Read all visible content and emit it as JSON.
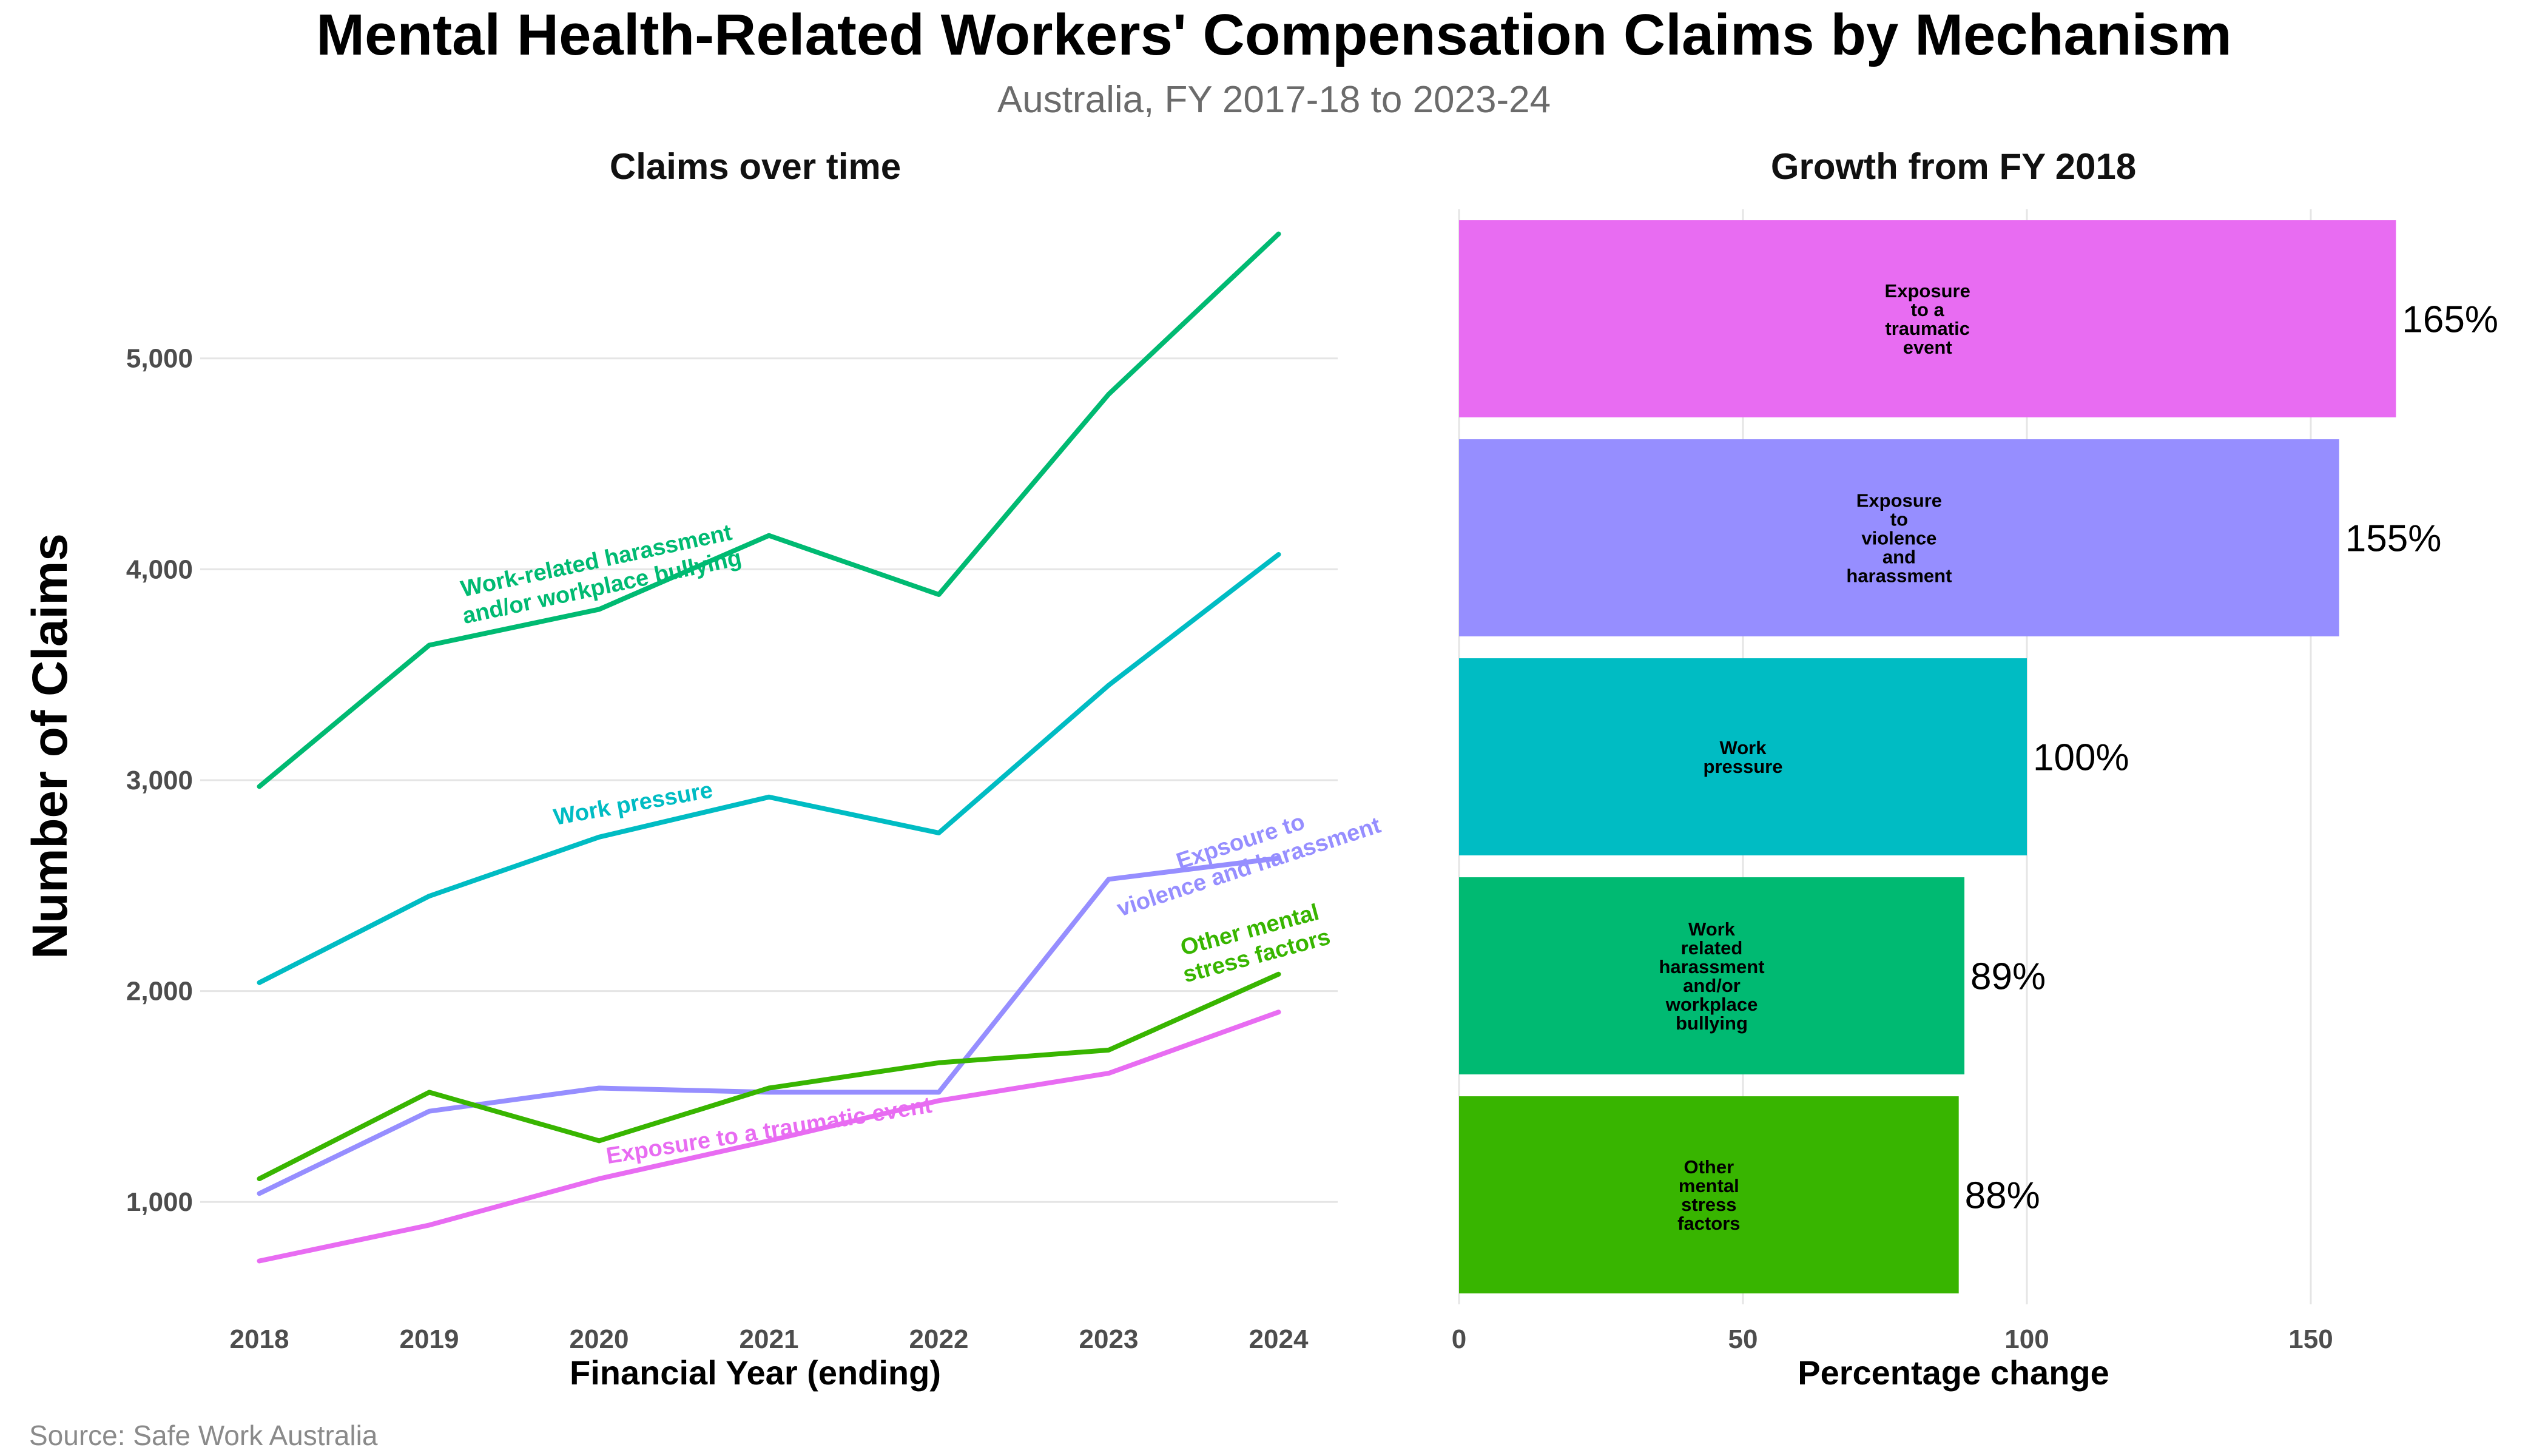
{
  "title": "Mental Health-Related Workers' Compensation Claims by Mechanism",
  "subtitle": "Australia, FY 2017-18 to 2023-24",
  "source": "Source: Safe Work Australia",
  "chart_data": [
    {
      "type": "line",
      "title": "Claims over time",
      "xlabel": "Financial Year (ending)",
      "ylabel": "Number of Claims",
      "x": [
        2018,
        2019,
        2020,
        2021,
        2022,
        2023,
        2024
      ],
      "x_tick_labels": [
        "2018",
        "2019",
        "2020",
        "2021",
        "2022",
        "2023",
        "2024"
      ],
      "ylim": [
        500,
        5750
      ],
      "y_ticks": [
        1000,
        2000,
        3000,
        4000,
        5000
      ],
      "y_tick_labels": [
        "1,000",
        "2,000",
        "3,000",
        "4,000",
        "5,000"
      ],
      "grid": true,
      "series": [
        {
          "name": "Work-related harassment and/or workplace bullying",
          "label_lines": [
            "Work-related harassment",
            "and/or workplace bullying"
          ],
          "color": "#00BA72",
          "values": [
            2970,
            3640,
            3810,
            4160,
            3880,
            4830,
            5590
          ]
        },
        {
          "name": "Work pressure",
          "label_lines": [
            "Work pressure"
          ],
          "color": "#00BCC3",
          "values": [
            2040,
            2450,
            2730,
            2920,
            2750,
            3450,
            4070
          ]
        },
        {
          "name": "Exposure to violence and harassment",
          "label_lines": [
            "Expsoure to",
            "violence and harassment"
          ],
          "color": "#968EFF",
          "values": [
            1040,
            1430,
            1540,
            1520,
            1520,
            2530,
            2630
          ]
        },
        {
          "name": "Other mental stress factors",
          "label_lines": [
            "Other mental",
            "stress factors"
          ],
          "color": "#38B500",
          "values": [
            1110,
            1520,
            1290,
            1540,
            1660,
            1720,
            2080
          ]
        },
        {
          "name": "Exposure to a traumatic event",
          "label_lines": [
            "Exposure to a traumatic event"
          ],
          "color": "#E86CF2",
          "values": [
            720,
            890,
            1110,
            1290,
            1480,
            1610,
            1900
          ]
        }
      ]
    },
    {
      "type": "bar",
      "orientation": "horizontal",
      "title": "Growth from FY 2018",
      "xlabel": "Percentage change",
      "ylabel": "",
      "xlim": [
        0,
        180
      ],
      "x_ticks": [
        0,
        50,
        100,
        150
      ],
      "x_tick_labels": [
        "0",
        "50",
        "100",
        "150"
      ],
      "grid": true,
      "bars": [
        {
          "category": "Exposure to a traumatic event",
          "label_lines": [
            "Exposure",
            "to a",
            "traumatic",
            "event"
          ],
          "value": 165,
          "value_label": "165%",
          "color": "#E86CF2"
        },
        {
          "category": "Exposure to violence and harassment",
          "label_lines": [
            "Exposure",
            "to",
            "violence",
            "and",
            "harassment"
          ],
          "value": 155,
          "value_label": "155%",
          "color": "#968EFF"
        },
        {
          "category": "Work pressure",
          "label_lines": [
            "Work",
            "pressure"
          ],
          "value": 100,
          "value_label": "100%",
          "color": "#00BCC3"
        },
        {
          "category": "Work related harassment and/or workplace bullying",
          "label_lines": [
            "Work",
            "related",
            "harassment",
            "and/or",
            "workplace",
            "bullying"
          ],
          "value": 89,
          "value_label": "89%",
          "color": "#00BA72"
        },
        {
          "category": "Other mental stress factors",
          "label_lines": [
            "Other",
            "mental",
            "stress",
            "factors"
          ],
          "value": 88,
          "value_label": "88%",
          "color": "#38B500"
        }
      ]
    }
  ]
}
